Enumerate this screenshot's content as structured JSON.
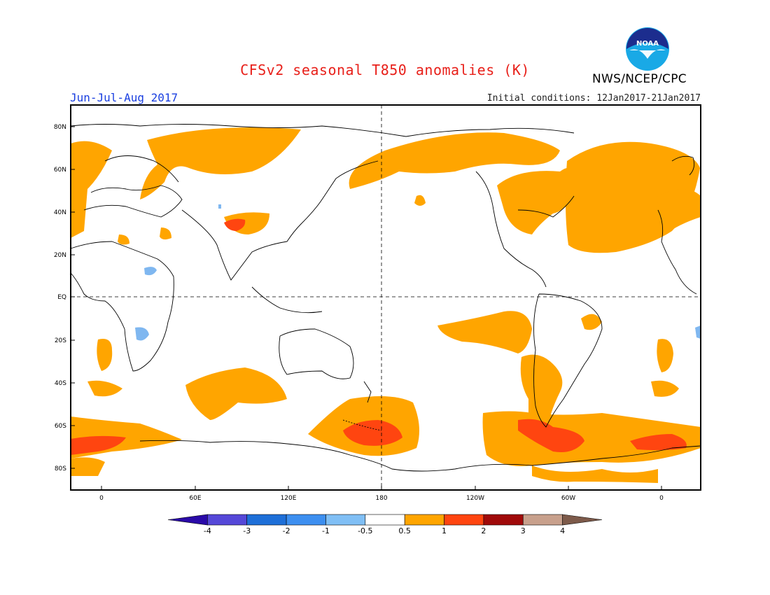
{
  "header": {
    "title": "CFSv2 seasonal T850 anomalies (K)",
    "agency": "NWS/NCEP/CPC",
    "season": "Jun-Jul-Aug 2017",
    "initial_conditions": "Initial conditions: 12Jan2017-21Jan2017",
    "logo_text": "NOAA"
  },
  "map": {
    "lat_labels": [
      "80N",
      "60N",
      "40N",
      "20N",
      "EQ",
      "20S",
      "40S",
      "60S",
      "80S"
    ],
    "lon_labels": [
      "0",
      "60E",
      "120E",
      "180",
      "120W",
      "60W",
      "0"
    ],
    "colors": {
      "ocean_land_bg": "#ffffff",
      "anom_0_5_1": "#ffa500",
      "anom_1_2": "#ff4510",
      "neg_0_5_1": "#7fb7f0"
    }
  },
  "colorbar": {
    "tick_labels": [
      "-4",
      "-3",
      "-2",
      "-1",
      "-0.5",
      "0.5",
      "1",
      "2",
      "3",
      "4"
    ],
    "colors": [
      "#2a0aa8",
      "#5548d8",
      "#1e6fd8",
      "#3d8ff0",
      "#80bff5",
      "#ffffff",
      "#ffa500",
      "#ff4510",
      "#a00a0a",
      "#c8a08c",
      "#7d5a4a"
    ]
  }
}
